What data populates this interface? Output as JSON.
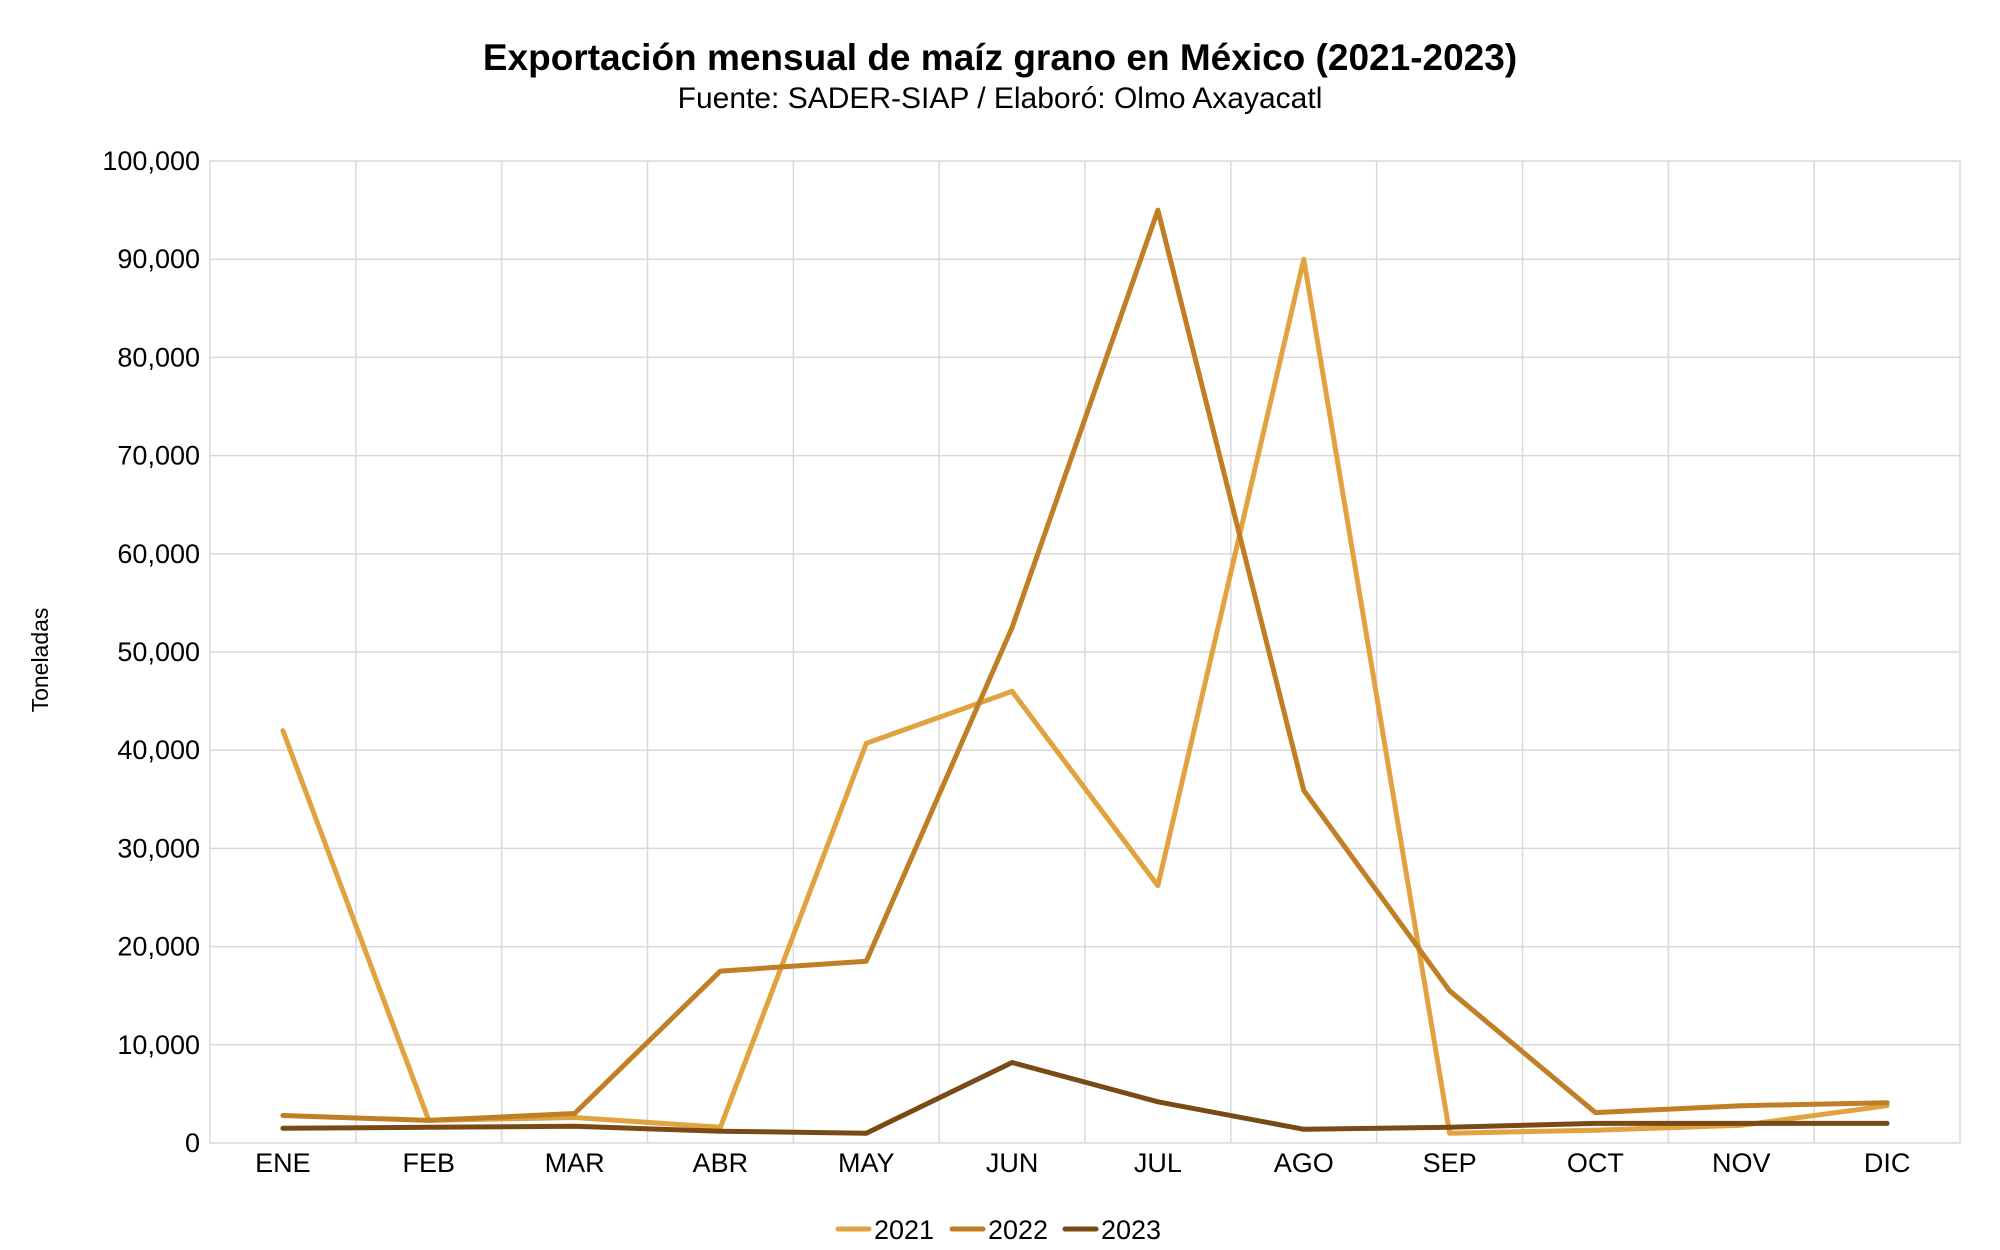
{
  "chart_data": {
    "type": "line",
    "title": "Exportación mensual de maíz grano en México (2021-2023)",
    "subtitle": "Fuente: SADER-SIAP / Elaboró: Olmo Axayacatl",
    "xlabel": "",
    "ylabel": "Toneladas",
    "ylim": [
      0,
      100000
    ],
    "yticks": [
      0,
      10000,
      20000,
      30000,
      40000,
      50000,
      60000,
      70000,
      80000,
      90000,
      100000
    ],
    "ytick_labels": [
      "0",
      "10,000",
      "20,000",
      "30,000",
      "40,000",
      "50,000",
      "60,000",
      "70,000",
      "80,000",
      "90,000",
      "100,000"
    ],
    "categories": [
      "ENE",
      "FEB",
      "MAR",
      "ABR",
      "MAY",
      "JUN",
      "JUL",
      "AGO",
      "SEP",
      "OCT",
      "NOV",
      "DIC"
    ],
    "grid": true,
    "legend_position": "bottom",
    "series": [
      {
        "name": "2021",
        "color": "#E0A33F",
        "values": [
          42000,
          2300,
          2600,
          1600,
          40700,
          46000,
          26200,
          90000,
          1000,
          1300,
          1800,
          3800
        ]
      },
      {
        "name": "2022",
        "color": "#C07F24",
        "values": [
          2800,
          2300,
          3000,
          17500,
          18500,
          52500,
          95000,
          35900,
          15500,
          3100,
          3800,
          4100
        ]
      },
      {
        "name": "2023",
        "color": "#7A4A14",
        "values": [
          1500,
          1600,
          1700,
          1200,
          1000,
          8200,
          4200,
          1400,
          1600,
          2000,
          2000,
          2000
        ]
      }
    ]
  }
}
